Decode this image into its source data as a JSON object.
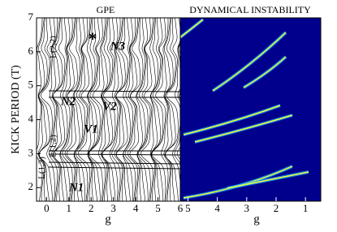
{
  "chart_data": [
    {
      "type": "line",
      "title": "GPE",
      "x_label": "g",
      "y_label": "KICK PERIOD (T)",
      "xlim": [
        -0.45,
        6
      ],
      "xticks": [
        0,
        1,
        2,
        3,
        4,
        5,
        6
      ],
      "ylim": [
        1.6,
        7
      ],
      "yticks": [
        2,
        3,
        4,
        5,
        6,
        7
      ],
      "annotations": [
        "N3",
        "*",
        "L(2,2)",
        "N2",
        "V2",
        "V1",
        "L(1,3)",
        "L(1,2)",
        "N1"
      ]
    },
    {
      "type": "heatmap",
      "title": "DYNAMICAL INSTABILITY",
      "x_label": "g",
      "xlim": [
        5.26,
        0.48
      ],
      "xticks": [
        5,
        4,
        3,
        2,
        1
      ],
      "ylim": [
        1.6,
        7
      ]
    }
  ]
}
